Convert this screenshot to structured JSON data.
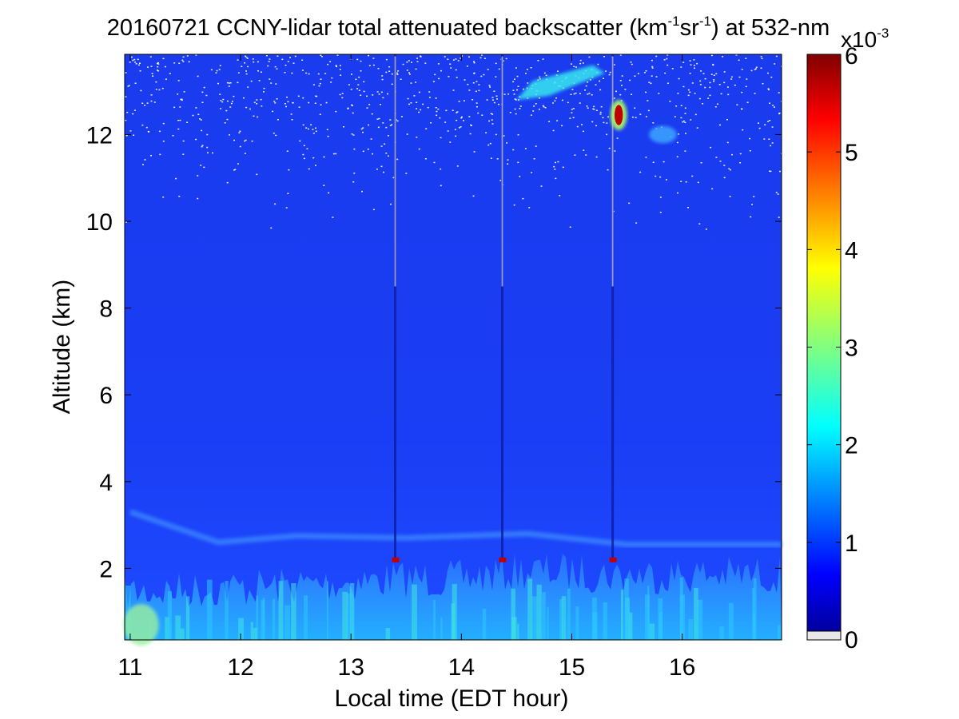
{
  "chart_data": {
    "type": "heatmap",
    "title": "20160721 CCNY-lidar total attenuated backscatter (km⁻¹sr⁻¹) at 532-nm",
    "title_parts": {
      "prefix": "20160721 CCNY-lidar total attenuated backscatter (km",
      "sup1": "-1",
      "mid": "sr",
      "sup2": "-1",
      "suffix": ") at 532-nm"
    },
    "xlabel": "Local time (EDT hour)",
    "ylabel": "Altitude (km)",
    "xlim": [
      10.95,
      16.9
    ],
    "ylim": [
      0.35,
      13.85
    ],
    "xticks": [
      11,
      12,
      13,
      14,
      15,
      16
    ],
    "yticks": [
      2,
      4,
      6,
      8,
      10,
      12
    ],
    "colorbar": {
      "colormap": "jet",
      "range": [
        0,
        6
      ],
      "ticks": [
        0,
        1,
        2,
        3,
        4,
        5,
        6
      ],
      "multiplier_base": "x10",
      "multiplier_exp": "-3",
      "units": "km-1 sr-1"
    },
    "grid": false,
    "features": {
      "boundary_layer_top_km": [
        {
          "x": 11.0,
          "y": 1.9
        },
        {
          "x": 12.0,
          "y": 2.0
        },
        {
          "x": 12.8,
          "y": 2.1
        },
        {
          "x": 13.4,
          "y": 2.2
        },
        {
          "x": 14.0,
          "y": 2.2
        },
        {
          "x": 14.6,
          "y": 2.4
        },
        {
          "x": 15.4,
          "y": 2.3
        },
        {
          "x": 16.0,
          "y": 2.3
        },
        {
          "x": 16.9,
          "y": 2.3
        }
      ],
      "residual_layer_km": [
        {
          "x": 11.0,
          "y": 3.3
        },
        {
          "x": 11.8,
          "y": 2.6
        },
        {
          "x": 12.5,
          "y": 2.75
        },
        {
          "x": 13.5,
          "y": 2.7
        },
        {
          "x": 14.6,
          "y": 2.8
        },
        {
          "x": 15.5,
          "y": 2.55
        },
        {
          "x": 16.9,
          "y": 2.55
        }
      ],
      "cirrus_clouds": [
        {
          "time_start": 14.5,
          "time_end": 15.3,
          "alt_low": 12.8,
          "alt_high": 13.6,
          "peak": 1.8
        },
        {
          "time_start": 15.35,
          "time_end": 15.5,
          "alt_low": 12.1,
          "alt_high": 12.8,
          "peak": 6.0
        },
        {
          "time_start": 15.7,
          "time_end": 15.95,
          "alt_low": 11.8,
          "alt_high": 12.2,
          "peak": 1.2
        }
      ],
      "calibration_spikes_hour": [
        13.4,
        14.37,
        15.37
      ]
    }
  }
}
